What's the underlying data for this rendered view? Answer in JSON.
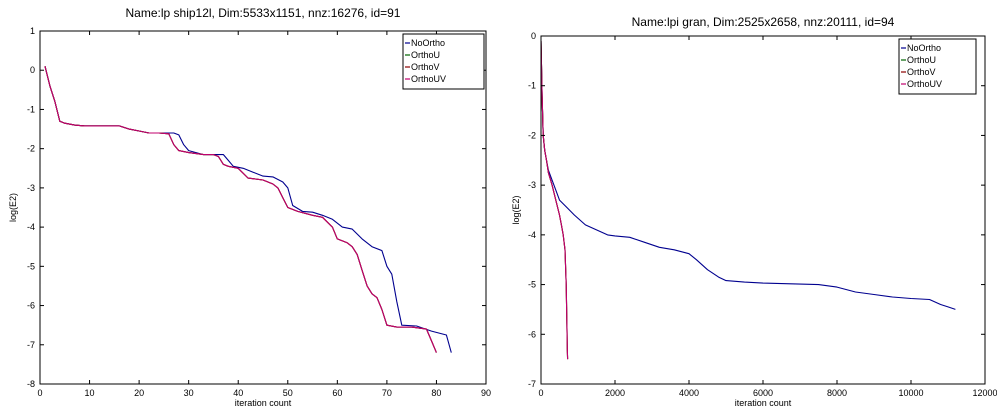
{
  "chart_data": [
    {
      "type": "line",
      "title": "Name:lp ship12l, Dim:5533x1151, nnz:16276, id=91",
      "xlabel": "iteration count",
      "ylabel": "log(E2)",
      "xlim": [
        0,
        90
      ],
      "ylim": [
        -8,
        1
      ],
      "xticks": [
        "0",
        "10",
        "20",
        "30",
        "40",
        "50",
        "60",
        "70",
        "80",
        "90"
      ],
      "yticks": [
        "1",
        "0",
        "-1",
        "-2",
        "-3",
        "-4",
        "-5",
        "-6",
        "-7",
        "-8"
      ],
      "legend_position": "top-right",
      "grid": false,
      "series": [
        {
          "name": "NoOrtho",
          "color": "#00008f",
          "x": [
            1,
            2,
            3,
            4,
            5,
            7,
            9,
            12,
            16,
            18,
            20,
            22,
            25,
            27,
            28,
            29,
            30,
            33,
            36,
            37,
            38,
            39,
            41,
            43,
            45,
            47,
            49,
            50,
            51,
            53,
            55,
            57,
            59,
            61,
            63,
            65,
            67,
            69,
            70,
            71,
            72,
            73,
            76,
            79,
            82,
            83
          ],
          "y": [
            0.1,
            -0.4,
            -0.8,
            -1.3,
            -1.35,
            -1.4,
            -1.42,
            -1.42,
            -1.42,
            -1.5,
            -1.55,
            -1.6,
            -1.6,
            -1.6,
            -1.65,
            -1.9,
            -2.05,
            -2.15,
            -2.15,
            -2.15,
            -2.3,
            -2.45,
            -2.5,
            -2.6,
            -2.7,
            -2.72,
            -2.85,
            -3.0,
            -3.45,
            -3.6,
            -3.62,
            -3.7,
            -3.8,
            -4.0,
            -4.05,
            -4.3,
            -4.5,
            -4.6,
            -5.0,
            -5.2,
            -5.9,
            -6.5,
            -6.52,
            -6.65,
            -6.75,
            -7.2
          ]
        },
        {
          "name": "OrthoU",
          "color": "#006400",
          "x": [
            1,
            2,
            3,
            4,
            5,
            7,
            9,
            12,
            16,
            18,
            20,
            22,
            24,
            26,
            27,
            28,
            30,
            33,
            35,
            36,
            37,
            38,
            40,
            42,
            45,
            47,
            48,
            49,
            50,
            52,
            55,
            57,
            59,
            60,
            62,
            63,
            64,
            65,
            66,
            67,
            68,
            69,
            70,
            72,
            75,
            78,
            79,
            80
          ],
          "y": [
            0.1,
            -0.4,
            -0.8,
            -1.3,
            -1.35,
            -1.4,
            -1.42,
            -1.42,
            -1.42,
            -1.5,
            -1.55,
            -1.6,
            -1.6,
            -1.62,
            -1.9,
            -2.05,
            -2.1,
            -2.15,
            -2.15,
            -2.2,
            -2.4,
            -2.45,
            -2.5,
            -2.75,
            -2.8,
            -2.9,
            -3.0,
            -3.25,
            -3.5,
            -3.6,
            -3.7,
            -3.75,
            -4.0,
            -4.3,
            -4.4,
            -4.5,
            -4.7,
            -5.1,
            -5.5,
            -5.7,
            -5.8,
            -6.1,
            -6.5,
            -6.55,
            -6.55,
            -6.6,
            -6.9,
            -7.2
          ]
        },
        {
          "name": "OrthoV",
          "color": "#8b0000",
          "x": [
            1,
            2,
            3,
            4,
            5,
            7,
            9,
            12,
            16,
            18,
            20,
            22,
            24,
            26,
            27,
            28,
            30,
            33,
            35,
            36,
            37,
            38,
            40,
            42,
            45,
            47,
            48,
            49,
            50,
            52,
            55,
            57,
            59,
            60,
            62,
            63,
            64,
            65,
            66,
            67,
            68,
            69,
            70,
            72,
            75,
            78,
            79,
            80
          ],
          "y": [
            0.1,
            -0.4,
            -0.8,
            -1.3,
            -1.35,
            -1.4,
            -1.42,
            -1.42,
            -1.42,
            -1.5,
            -1.55,
            -1.6,
            -1.6,
            -1.62,
            -1.9,
            -2.05,
            -2.1,
            -2.15,
            -2.15,
            -2.2,
            -2.4,
            -2.45,
            -2.5,
            -2.75,
            -2.8,
            -2.9,
            -3.0,
            -3.25,
            -3.5,
            -3.6,
            -3.7,
            -3.75,
            -4.0,
            -4.3,
            -4.4,
            -4.5,
            -4.7,
            -5.1,
            -5.5,
            -5.7,
            -5.8,
            -6.1,
            -6.5,
            -6.55,
            -6.55,
            -6.6,
            -6.9,
            -7.2
          ]
        },
        {
          "name": "OrthoUV",
          "color": "#c0006e",
          "x": [
            1,
            2,
            3,
            4,
            5,
            7,
            9,
            12,
            16,
            18,
            20,
            22,
            24,
            26,
            27,
            28,
            30,
            33,
            35,
            36,
            37,
            38,
            40,
            42,
            45,
            47,
            48,
            49,
            50,
            52,
            55,
            57,
            59,
            60,
            62,
            63,
            64,
            65,
            66,
            67,
            68,
            69,
            70,
            72,
            75,
            78,
            79,
            80
          ],
          "y": [
            0.1,
            -0.4,
            -0.8,
            -1.3,
            -1.35,
            -1.4,
            -1.42,
            -1.42,
            -1.42,
            -1.5,
            -1.55,
            -1.6,
            -1.6,
            -1.62,
            -1.9,
            -2.05,
            -2.1,
            -2.15,
            -2.15,
            -2.2,
            -2.4,
            -2.45,
            -2.5,
            -2.75,
            -2.8,
            -2.9,
            -3.0,
            -3.25,
            -3.5,
            -3.6,
            -3.7,
            -3.75,
            -4.0,
            -4.3,
            -4.4,
            -4.5,
            -4.7,
            -5.1,
            -5.5,
            -5.7,
            -5.8,
            -6.1,
            -6.5,
            -6.55,
            -6.55,
            -6.6,
            -6.9,
            -7.2
          ]
        }
      ]
    },
    {
      "type": "line",
      "title": "Name:lpi gran, Dim:2525x2658, nnz:20111, id=94",
      "xlabel": "iteration count",
      "ylabel": "log(E2)",
      "xlim": [
        0,
        12000
      ],
      "ylim": [
        -7,
        0
      ],
      "xticks": [
        "0",
        "2000",
        "4000",
        "6000",
        "8000",
        "10000",
        "12000"
      ],
      "yticks": [
        "0",
        "-1",
        "-2",
        "-3",
        "-4",
        "-5",
        "-6",
        "-7"
      ],
      "legend_position": "top-right",
      "grid": false,
      "series": [
        {
          "name": "NoOrtho",
          "color": "#00008f",
          "x": [
            0,
            30,
            60,
            100,
            150,
            200,
            300,
            400,
            500,
            700,
            900,
            1200,
            1500,
            1800,
            2000,
            2400,
            2800,
            3200,
            3600,
            4000,
            4200,
            4500,
            4800,
            5000,
            5500,
            6000,
            6500,
            7000,
            7500,
            8000,
            8500,
            9000,
            9500,
            10000,
            10500,
            10800,
            11000,
            11200
          ],
          "y": [
            -0.1,
            -1.2,
            -2.0,
            -2.3,
            -2.5,
            -2.7,
            -2.9,
            -3.1,
            -3.3,
            -3.45,
            -3.6,
            -3.8,
            -3.9,
            -4.0,
            -4.02,
            -4.05,
            -4.15,
            -4.25,
            -4.3,
            -4.38,
            -4.5,
            -4.7,
            -4.85,
            -4.92,
            -4.95,
            -4.97,
            -4.98,
            -4.99,
            -5.0,
            -5.05,
            -5.15,
            -5.2,
            -5.25,
            -5.28,
            -5.3,
            -5.4,
            -5.45,
            -5.5
          ]
        },
        {
          "name": "OrthoU",
          "color": "#006400",
          "x": [
            0,
            30,
            60,
            100,
            150,
            200,
            300,
            400,
            500,
            550,
            600,
            650,
            680,
            700,
            710,
            720
          ],
          "y": [
            -0.1,
            -1.2,
            -2.0,
            -2.3,
            -2.5,
            -2.75,
            -3.0,
            -3.3,
            -3.6,
            -3.8,
            -4.0,
            -4.3,
            -5.0,
            -5.8,
            -6.3,
            -6.5
          ]
        },
        {
          "name": "OrthoV",
          "color": "#8b0000",
          "x": [
            0,
            30,
            60,
            100,
            150,
            200,
            300,
            400,
            500,
            550,
            600,
            650,
            680,
            700,
            710,
            720
          ],
          "y": [
            -0.1,
            -1.2,
            -2.0,
            -2.3,
            -2.5,
            -2.75,
            -3.0,
            -3.3,
            -3.6,
            -3.8,
            -4.0,
            -4.3,
            -5.0,
            -5.8,
            -6.3,
            -6.5
          ]
        },
        {
          "name": "OrthoUV",
          "color": "#c0006e",
          "x": [
            0,
            30,
            60,
            100,
            150,
            200,
            300,
            400,
            500,
            550,
            600,
            650,
            680,
            700,
            710,
            720
          ],
          "y": [
            -0.1,
            -1.2,
            -2.0,
            -2.3,
            -2.5,
            -2.75,
            -3.0,
            -3.3,
            -3.6,
            -3.8,
            -4.0,
            -4.3,
            -5.0,
            -5.8,
            -6.3,
            -6.5
          ]
        }
      ]
    }
  ]
}
